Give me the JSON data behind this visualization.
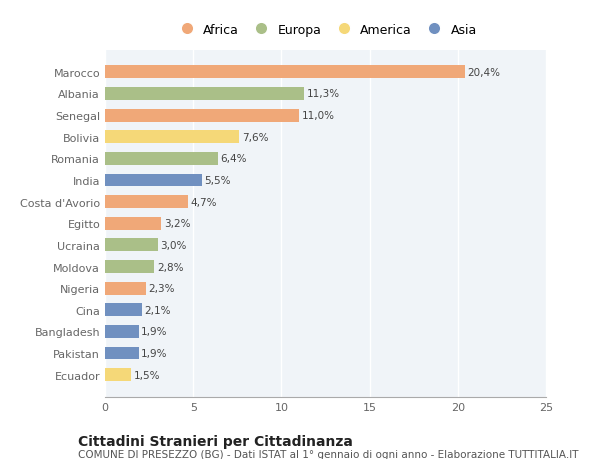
{
  "countries": [
    "Marocco",
    "Albania",
    "Senegal",
    "Bolivia",
    "Romania",
    "India",
    "Costa d'Avorio",
    "Egitto",
    "Ucraina",
    "Moldova",
    "Nigeria",
    "Cina",
    "Bangladesh",
    "Pakistan",
    "Ecuador"
  ],
  "values": [
    20.4,
    11.3,
    11.0,
    7.6,
    6.4,
    5.5,
    4.7,
    3.2,
    3.0,
    2.8,
    2.3,
    2.1,
    1.9,
    1.9,
    1.5
  ],
  "labels": [
    "20,4%",
    "11,3%",
    "11,0%",
    "7,6%",
    "6,4%",
    "5,5%",
    "4,7%",
    "3,2%",
    "3,0%",
    "2,8%",
    "2,3%",
    "2,1%",
    "1,9%",
    "1,9%",
    "1,5%"
  ],
  "continents": [
    "Africa",
    "Europa",
    "Africa",
    "America",
    "Europa",
    "Asia",
    "Africa",
    "Africa",
    "Europa",
    "Europa",
    "Africa",
    "Asia",
    "Asia",
    "Asia",
    "America"
  ],
  "continent_colors": {
    "Africa": "#F0A878",
    "Europa": "#AABF88",
    "America": "#F5D878",
    "Asia": "#7090C0"
  },
  "legend_order": [
    "Africa",
    "Europa",
    "America",
    "Asia"
  ],
  "title": "Cittadini Stranieri per Cittadinanza",
  "subtitle": "COMUNE DI PRESEZZO (BG) - Dati ISTAT al 1° gennaio di ogni anno - Elaborazione TUTTITALIA.IT",
  "xlim": [
    0,
    25
  ],
  "xticks": [
    0,
    5,
    10,
    15,
    20,
    25
  ],
  "background_color": "#ffffff",
  "plot_bg_color": "#f0f4f8",
  "grid_color": "#ffffff",
  "bar_height": 0.6,
  "title_fontsize": 10,
  "subtitle_fontsize": 7.5,
  "label_fontsize": 7.5,
  "tick_fontsize": 8,
  "legend_fontsize": 9
}
